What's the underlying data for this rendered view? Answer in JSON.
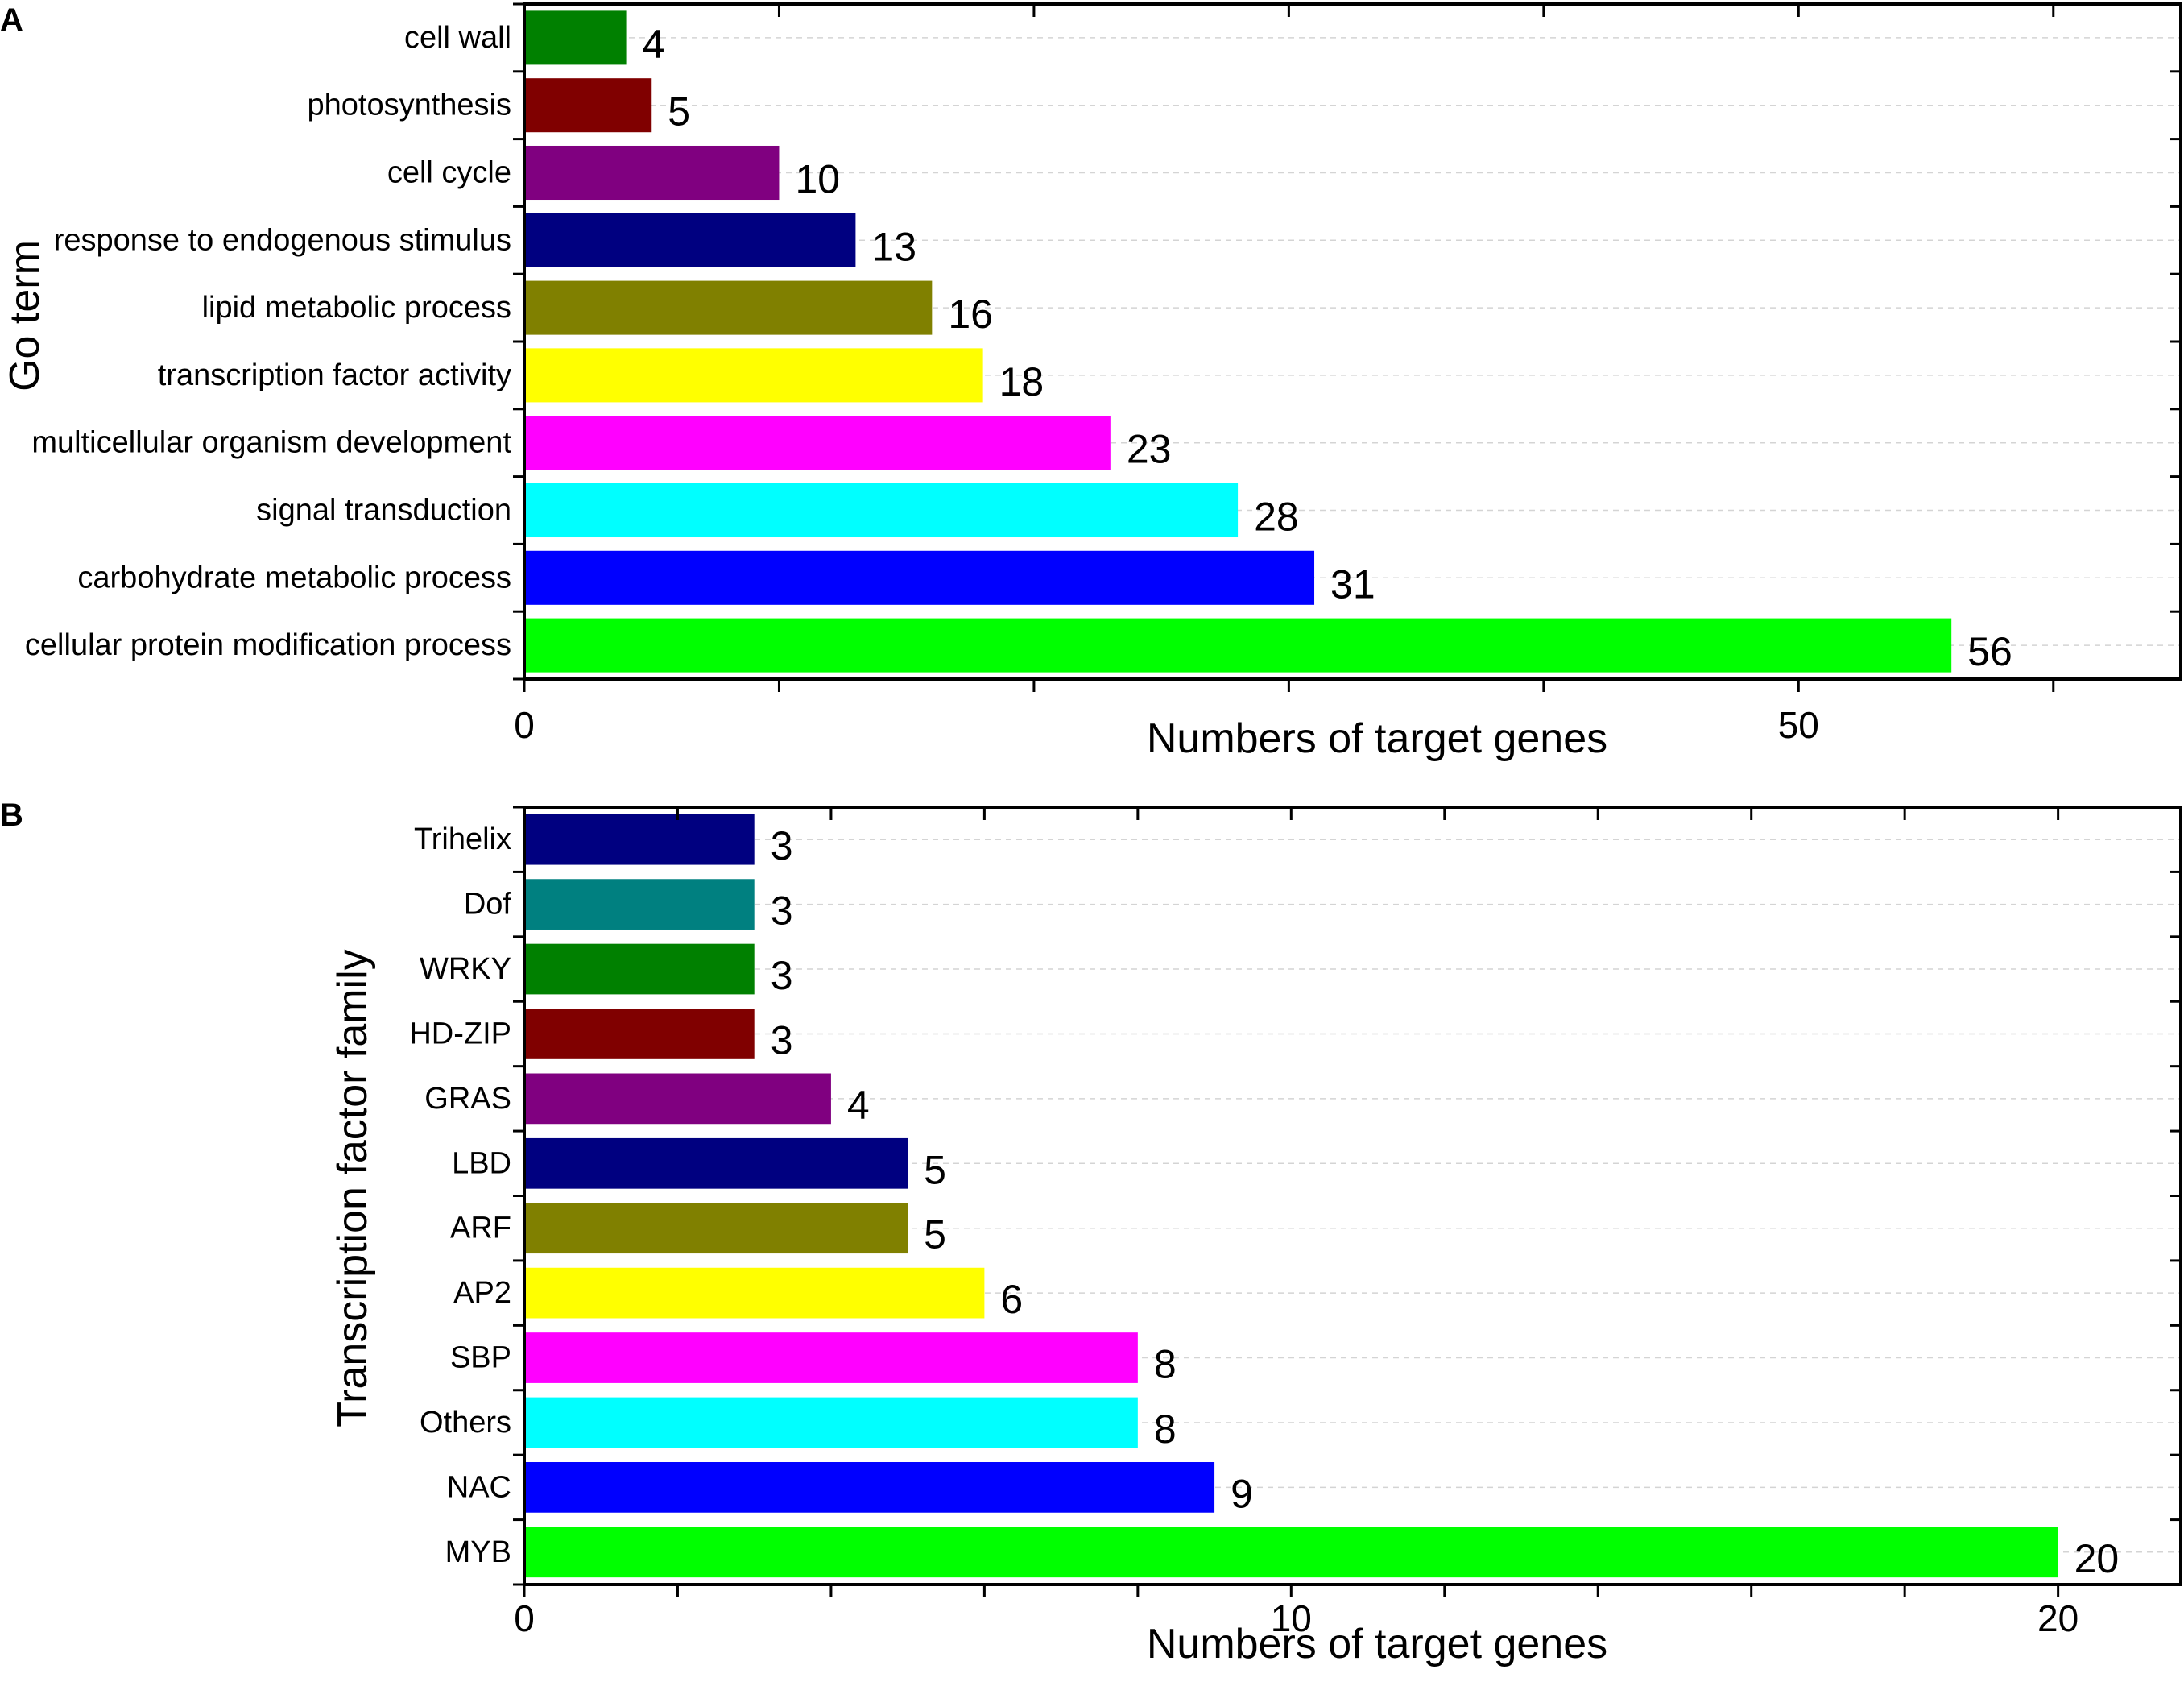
{
  "chart_data": [
    {
      "panel": "A",
      "type": "bar",
      "orientation": "horizontal",
      "categories": [
        "cell wall",
        "photosynthesis",
        "cell cycle",
        "response to endogenous stimulus",
        "lipid metabolic process",
        "transcription factor activity",
        "multicellular organism development",
        "signal transduction",
        "carbohydrate metabolic process",
        "cellular protein modification process"
      ],
      "values": [
        4,
        5,
        10,
        13,
        16,
        18,
        23,
        28,
        31,
        56
      ],
      "value_labels": [
        "4",
        "5",
        "10",
        "13",
        "16",
        "18",
        "23",
        "28",
        "31",
        "56"
      ],
      "colors": [
        "#008000",
        "#800000",
        "#800080",
        "#000080",
        "#808000",
        "#ffff00",
        "#ff00ff",
        "#00ffff",
        "#0000ff",
        "#00ff00"
      ],
      "xlabel": "Numbers of target genes",
      "ylabel": "Go term",
      "xlim": [
        0,
        65
      ],
      "xticks": [
        0,
        50
      ],
      "xtick_labels": [
        "0",
        "50"
      ],
      "minor_step": 10,
      "grid": true
    },
    {
      "panel": "B",
      "type": "bar",
      "orientation": "horizontal",
      "categories": [
        "Trihelix",
        "Dof",
        "WRKY",
        "HD-ZIP",
        "GRAS",
        "LBD",
        "ARF",
        "AP2",
        "SBP",
        "Others",
        "NAC",
        "MYB"
      ],
      "values": [
        3,
        3,
        3,
        3,
        4,
        5,
        5,
        6,
        8,
        8,
        9,
        20
      ],
      "value_labels": [
        "3",
        "3",
        "3",
        "3",
        "4",
        "5",
        "5",
        "6",
        "8",
        "8",
        "9",
        "20"
      ],
      "colors": [
        "#000080",
        "#008080",
        "#008000",
        "#800000",
        "#800080",
        "#000080",
        "#808000",
        "#ffff00",
        "#ff00ff",
        "#00ffff",
        "#0000ff",
        "#00ff00"
      ],
      "xlabel": "Numbers of target genes",
      "ylabel": "Transcription factor family",
      "xlim": [
        0,
        21.6
      ],
      "xticks": [
        0,
        10,
        20
      ],
      "xtick_labels": [
        "0",
        "10",
        "20"
      ],
      "minor_step": 2,
      "grid": true
    }
  ]
}
